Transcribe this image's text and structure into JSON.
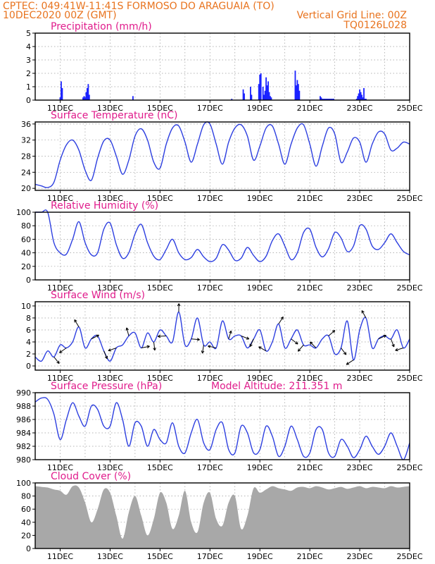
{
  "header": {
    "line1_left": "CPTEC:   049:41W-11:41S   FORMOSO DO ARAGUAIA (TO)",
    "line2_left": "10DEC2020 00Z (GMT)",
    "line2_right": "Vertical Grid Line: 00Z",
    "line3_right": "TQ0126L028"
  },
  "colors": {
    "header": "#e8731e",
    "panel_title": "#e01c8c",
    "series": "#2d3fe0",
    "bars": "#1a22ff",
    "cloud": "#a8a8a8"
  },
  "x_ticks": [
    "11DEC",
    "13DEC",
    "15DEC",
    "17DEC",
    "19DEC",
    "21DEC",
    "23DEC",
    "25DEC"
  ],
  "chart_data": [
    {
      "type": "bar",
      "title": "Precipitation (mm/h)",
      "ylim": [
        0,
        5
      ],
      "yticks": [
        0,
        1,
        2,
        3,
        4,
        5
      ],
      "x_hours": [
        24,
        25,
        26,
        46,
        47,
        48,
        49,
        50,
        51,
        52,
        94,
        189,
        200,
        201,
        207,
        208,
        215,
        216,
        217,
        219,
        220,
        221,
        222,
        223,
        224,
        225,
        226,
        227,
        250,
        251,
        252,
        253,
        254,
        274,
        275,
        276,
        277,
        278,
        279,
        280,
        281,
        282,
        283,
        284,
        285,
        286,
        287,
        309,
        310,
        311,
        312,
        313,
        314,
        315,
        316,
        317,
        318
      ],
      "values": [
        0.2,
        1.4,
        0.9,
        0.2,
        0.3,
        0.2,
        0.6,
        0.9,
        1.2,
        0.4,
        0.3,
        0.1,
        0.8,
        0.5,
        1.0,
        0.4,
        1.2,
        1.9,
        2.0,
        1.0,
        0.4,
        0.7,
        1.7,
        1.1,
        1.4,
        0.6,
        0.3,
        0.2,
        2.2,
        1.1,
        1.5,
        1.2,
        0.7,
        0.3,
        0.2,
        0.1,
        0.1,
        0.1,
        0.1,
        0.1,
        0.1,
        0.1,
        0.1,
        0.1,
        0.1,
        0.1,
        0.1,
        0.1,
        0.3,
        0.5,
        0.8,
        0.6,
        0.4,
        0.2,
        0.9,
        0.1,
        0.1
      ]
    },
    {
      "type": "line",
      "title": "Surface Temperature (nC)",
      "ylim": [
        19.5,
        36.5
      ],
      "yticks": [
        20,
        24,
        28,
        32,
        36
      ],
      "x_hours": [
        0,
        6,
        12,
        18,
        24,
        30,
        36,
        42,
        48,
        54,
        60,
        66,
        72,
        78,
        84,
        90,
        96,
        102,
        108,
        114,
        120,
        126,
        132,
        138,
        144,
        150,
        156,
        162,
        168,
        174,
        180,
        186,
        192,
        198,
        204,
        210,
        216,
        222,
        228,
        234,
        240,
        246,
        252,
        258,
        264,
        270,
        276,
        282,
        288,
        294,
        300,
        306,
        312,
        318,
        324,
        330,
        336,
        342,
        348,
        354,
        360
      ],
      "values": [
        21.0,
        20.6,
        20.2,
        21.5,
        27.0,
        30.8,
        32.0,
        29.5,
        24.5,
        22.0,
        27.5,
        31.8,
        32.0,
        28.0,
        23.5,
        27.0,
        33.0,
        34.8,
        32.0,
        26.5,
        25.0,
        31.0,
        35.0,
        35.5,
        31.5,
        26.5,
        31.0,
        35.8,
        36.0,
        31.0,
        26.0,
        31.5,
        35.0,
        35.8,
        33.0,
        27.0,
        30.5,
        35.0,
        35.5,
        31.0,
        26.0,
        31.0,
        35.0,
        35.8,
        31.0,
        25.5,
        30.5,
        35.0,
        33.5,
        26.5,
        29.0,
        32.5,
        31.5,
        26.5,
        31.0,
        34.0,
        33.5,
        29.5,
        30.0,
        31.5,
        31.0
      ]
    },
    {
      "type": "line",
      "title": "Relative Humidity (%)",
      "ylim": [
        0,
        100
      ],
      "yticks": [
        0,
        20,
        40,
        60,
        80,
        100
      ],
      "x_hours": [
        0,
        6,
        12,
        18,
        24,
        30,
        36,
        42,
        48,
        54,
        60,
        66,
        72,
        78,
        84,
        90,
        96,
        102,
        108,
        114,
        120,
        126,
        132,
        138,
        144,
        150,
        156,
        162,
        168,
        174,
        180,
        186,
        192,
        198,
        204,
        210,
        216,
        222,
        228,
        234,
        240,
        246,
        252,
        258,
        264,
        270,
        276,
        282,
        288,
        294,
        300,
        306,
        312,
        318,
        324,
        330,
        336,
        342,
        348,
        354,
        360
      ],
      "values": [
        100,
        100,
        100,
        55,
        40,
        38,
        60,
        86,
        55,
        37,
        40,
        75,
        84,
        52,
        32,
        40,
        68,
        82,
        55,
        35,
        30,
        45,
        60,
        40,
        30,
        33,
        45,
        34,
        27,
        32,
        52,
        44,
        29,
        32,
        48,
        36,
        27,
        35,
        58,
        68,
        50,
        30,
        40,
        70,
        75,
        48,
        34,
        46,
        70,
        62,
        42,
        50,
        80,
        75,
        50,
        45,
        55,
        68,
        55,
        42,
        37
      ]
    },
    {
      "type": "line",
      "title": "Surface Wind (m/s)",
      "ylim": [
        -0.7,
        10.7
      ],
      "yticks": [
        0,
        2,
        4,
        6,
        8,
        10
      ],
      "x_hours": [
        0,
        6,
        12,
        18,
        24,
        30,
        36,
        42,
        48,
        54,
        60,
        66,
        72,
        78,
        84,
        90,
        96,
        102,
        108,
        114,
        120,
        126,
        132,
        138,
        144,
        150,
        156,
        162,
        168,
        174,
        180,
        186,
        192,
        198,
        204,
        210,
        216,
        222,
        228,
        234,
        240,
        246,
        252,
        258,
        264,
        270,
        276,
        282,
        288,
        294,
        300,
        306,
        312,
        318,
        324,
        330,
        336,
        342,
        348,
        354,
        360
      ],
      "values": [
        1.5,
        0.8,
        2.5,
        1.5,
        3.5,
        3.0,
        4.0,
        6.5,
        3.0,
        4.5,
        5.0,
        2.5,
        0.8,
        3.0,
        3.5,
        5.0,
        5.5,
        3.0,
        5.5,
        4.0,
        6.0,
        5.0,
        4.0,
        9.0,
        3.5,
        4.5,
        8.0,
        3.5,
        4.0,
        3.0,
        7.5,
        4.5,
        5.0,
        5.0,
        3.0,
        4.5,
        6.0,
        2.5,
        4.0,
        7.0,
        3.0,
        4.5,
        6.0,
        3.5,
        3.5,
        3.0,
        4.5,
        5.0,
        2.0,
        3.0,
        7.5,
        1.0,
        6.0,
        8.0,
        3.0,
        4.5,
        5.0,
        4.5,
        6.0,
        3.0,
        4.5
      ]
    },
    {
      "type": "line",
      "title": "Surface Pressure (hPa)",
      "annotation": "Model Altitude: 211.351  m",
      "ylim": [
        980,
        990
      ],
      "yticks": [
        980,
        982,
        984,
        986,
        988,
        990
      ],
      "x_hours": [
        0,
        6,
        12,
        18,
        24,
        30,
        36,
        42,
        48,
        54,
        60,
        66,
        72,
        78,
        84,
        90,
        96,
        102,
        108,
        114,
        120,
        126,
        132,
        138,
        144,
        150,
        156,
        162,
        168,
        174,
        180,
        186,
        192,
        198,
        204,
        210,
        216,
        222,
        228,
        234,
        240,
        246,
        252,
        258,
        264,
        270,
        276,
        282,
        288,
        294,
        300,
        306,
        312,
        318,
        324,
        330,
        336,
        342,
        348,
        354,
        360
      ],
      "values": [
        988.6,
        989.2,
        989.0,
        986.8,
        983.0,
        986.0,
        988.5,
        986.5,
        985.0,
        988.0,
        987.5,
        985.0,
        985.0,
        988.5,
        986.0,
        982.0,
        985.5,
        985.0,
        982.0,
        984.5,
        983.0,
        982.5,
        985.5,
        982.0,
        981.0,
        984.0,
        986.0,
        982.5,
        981.5,
        984.5,
        985.5,
        981.5,
        981.0,
        985.0,
        984.0,
        981.0,
        981.5,
        985.0,
        983.5,
        980.5,
        982.0,
        985.0,
        983.0,
        980.5,
        981.0,
        984.5,
        984.5,
        981.0,
        980.5,
        983.0,
        982.0,
        980.3,
        981.5,
        983.5,
        982.0,
        980.8,
        982.0,
        984.0,
        982.0,
        980.0,
        982.5
      ]
    },
    {
      "type": "area",
      "title": "Cloud Cover (%)",
      "ylim": [
        0,
        100
      ],
      "yticks": [
        0,
        20,
        40,
        60,
        80,
        100
      ],
      "x_hours": [
        0,
        6,
        12,
        18,
        24,
        30,
        36,
        42,
        48,
        54,
        60,
        66,
        72,
        78,
        84,
        90,
        96,
        102,
        108,
        114,
        120,
        126,
        132,
        138,
        144,
        150,
        156,
        162,
        168,
        174,
        180,
        186,
        192,
        198,
        204,
        210,
        216,
        222,
        228,
        234,
        240,
        246,
        252,
        258,
        264,
        270,
        276,
        282,
        288,
        294,
        300,
        306,
        312,
        318,
        324,
        330,
        336,
        342,
        348,
        354,
        360
      ],
      "values": [
        95,
        94,
        93,
        90,
        88,
        82,
        95,
        93,
        70,
        40,
        60,
        90,
        85,
        50,
        15,
        55,
        80,
        50,
        20,
        45,
        85,
        70,
        30,
        50,
        88,
        40,
        25,
        70,
        85,
        45,
        35,
        70,
        80,
        30,
        50,
        92,
        85,
        90,
        95,
        92,
        90,
        88,
        93,
        94,
        92,
        95,
        93,
        90,
        92,
        94,
        91,
        93,
        95,
        92,
        94,
        93,
        92,
        95,
        93,
        94,
        95
      ]
    }
  ]
}
